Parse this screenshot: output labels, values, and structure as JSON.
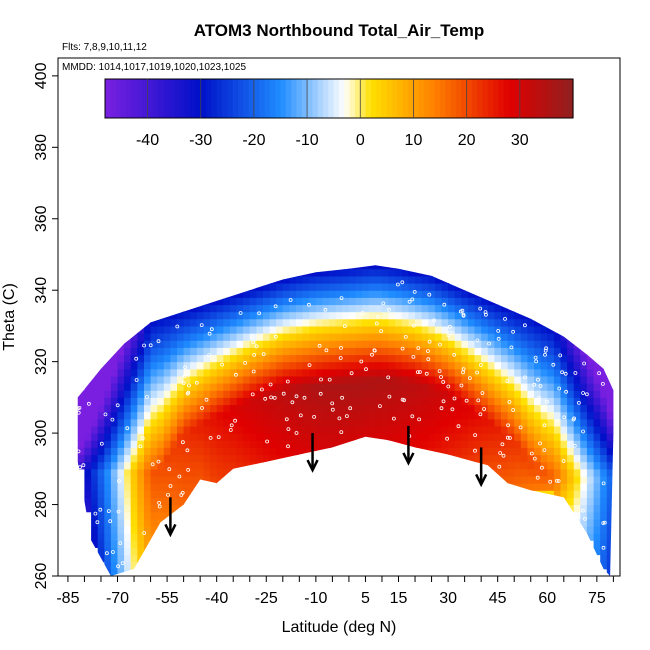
{
  "chart_data": {
    "type": "heatmap",
    "title": "ATOM3 Northbound Total_Air_Temp",
    "annotations": [
      "Flts: 7,8,9,10,11,12",
      "MMDD: 1014,1017,1019,1020,1023,1025"
    ],
    "xlabel": "Latitude (deg N)",
    "ylabel": "Theta (C)",
    "xlim": [
      -85,
      82
    ],
    "ylim": [
      260,
      405
    ],
    "x_ticks": [
      -85,
      -70,
      -55,
      -40,
      -25,
      -10,
      5,
      15,
      30,
      45,
      60,
      75
    ],
    "y_ticks": [
      260,
      280,
      300,
      320,
      340,
      360,
      380,
      400
    ],
    "colorbar": {
      "ticks": [
        -40,
        -30,
        -20,
        -10,
        0,
        10,
        20,
        30
      ],
      "range": [
        -48,
        40
      ],
      "colors": [
        "#7a1fe0",
        "#0010c8",
        "#1f8cff",
        "#ffffff",
        "#ffe000",
        "#ff8000",
        "#e00000",
        "#902020"
      ]
    },
    "envelope": {
      "bottom": [
        [
          -82,
          292
        ],
        [
          -78,
          270
        ],
        [
          -72,
          260
        ],
        [
          -65,
          262
        ],
        [
          -57,
          275
        ],
        [
          -50,
          280
        ],
        [
          -45,
          287
        ],
        [
          -40,
          286
        ],
        [
          -35,
          290
        ],
        [
          -25,
          292
        ],
        [
          -15,
          294
        ],
        [
          -5,
          296
        ],
        [
          5,
          299
        ],
        [
          12,
          298
        ],
        [
          20,
          296
        ],
        [
          30,
          294
        ],
        [
          38,
          292
        ],
        [
          42,
          291
        ],
        [
          48,
          286
        ],
        [
          55,
          284
        ],
        [
          60,
          283
        ],
        [
          65,
          282
        ],
        [
          72,
          272
        ],
        [
          77,
          262
        ],
        [
          79,
          260
        ]
      ],
      "top": [
        [
          -82,
          310
        ],
        [
          -75,
          318
        ],
        [
          -68,
          325
        ],
        [
          -60,
          331
        ],
        [
          -50,
          334
        ],
        [
          -40,
          337
        ],
        [
          -30,
          340
        ],
        [
          -20,
          343
        ],
        [
          -10,
          345
        ],
        [
          0,
          346
        ],
        [
          8,
          347
        ],
        [
          15,
          346
        ],
        [
          25,
          344
        ],
        [
          35,
          340
        ],
        [
          45,
          336
        ],
        [
          55,
          332
        ],
        [
          65,
          327
        ],
        [
          72,
          322
        ],
        [
          77,
          318
        ],
        [
          80,
          312
        ]
      ]
    },
    "core": [
      [
        -58,
        289
      ],
      [
        -50,
        300
      ],
      [
        -40,
        305
      ],
      [
        -30,
        309
      ],
      [
        -20,
        312
      ],
      [
        -10,
        313
      ],
      [
        0,
        314
      ],
      [
        10,
        315
      ],
      [
        20,
        314
      ],
      [
        30,
        311
      ],
      [
        40,
        305
      ],
      [
        50,
        298
      ],
      [
        55,
        292
      ],
      [
        60,
        288
      ]
    ],
    "arrows": [
      {
        "lat": -54,
        "theta": 282
      },
      {
        "lat": -11,
        "theta": 300
      },
      {
        "lat": 18,
        "theta": 302
      },
      {
        "lat": 40,
        "theta": 296
      }
    ]
  }
}
